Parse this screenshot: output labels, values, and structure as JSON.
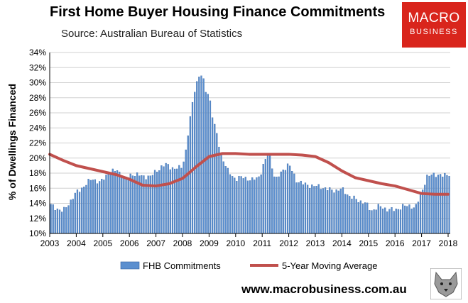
{
  "header": {
    "title": "First Home Buyer Housing Finance Commitments",
    "subtitle": "Source: Australian Bureau of Statistics"
  },
  "logo": {
    "line1": "MACRO",
    "line2": "BUSINESS"
  },
  "footer": {
    "website": "www.macrobusiness.com.au"
  },
  "colors": {
    "bars": "#5b8fcf",
    "bar_edge": "#2f5f9e",
    "average": "#c0504d",
    "logo_bg": "#d9251c"
  },
  "chart_data": {
    "type": "bar",
    "title": "First Home Buyer Housing Finance Commitments",
    "ylabel": "% of Dwellings Financed",
    "xlabel": "",
    "ylim": [
      10,
      34
    ],
    "yticks": [
      "10%",
      "12%",
      "14%",
      "16%",
      "18%",
      "20%",
      "22%",
      "24%",
      "26%",
      "28%",
      "30%",
      "32%",
      "34%"
    ],
    "xticks": [
      "2003",
      "2004",
      "2005",
      "2006",
      "2007",
      "2008",
      "2009",
      "2010",
      "2011",
      "2012",
      "2013",
      "2014",
      "2015",
      "2016",
      "2017",
      "2018"
    ],
    "xlim": [
      2003.0,
      2018.08
    ],
    "grid": true,
    "legend_position": "bottom",
    "series": [
      {
        "name": "FHB Commitments",
        "type": "bar",
        "anchors_x": [
          2003.0,
          2003.5,
          2004.0,
          2004.3,
          2004.6,
          2004.9,
          2005.2,
          2005.55,
          2005.85,
          2006.1,
          2006.5,
          2006.8,
          2007.0,
          2007.4,
          2007.7,
          2007.95,
          2008.1,
          2008.3,
          2008.45,
          2008.6,
          2008.75,
          2008.85,
          2009.0,
          2009.15,
          2009.3,
          2009.45,
          2009.7,
          2010.0,
          2010.3,
          2010.6,
          2010.9,
          2011.1,
          2011.25,
          2011.5,
          2011.8,
          2012.0,
          2012.3,
          2012.6,
          2012.9,
          2013.2,
          2013.5,
          2013.8,
          2014.0,
          2014.3,
          2014.6,
          2014.9,
          2015.1,
          2015.4,
          2015.7,
          2016.0,
          2016.3,
          2016.6,
          2016.75,
          2016.9,
          2017.2,
          2017.5,
          2017.8,
          2018.0
        ],
        "anchors_y": [
          13.8,
          12.9,
          15.4,
          16.3,
          17.3,
          16.7,
          18.0,
          18.4,
          17.2,
          17.9,
          17.6,
          17.5,
          18.3,
          19.2,
          18.5,
          18.8,
          20.3,
          25.5,
          29.0,
          30.8,
          31.0,
          29.0,
          28.5,
          25.0,
          23.0,
          20.5,
          18.3,
          17.2,
          17.5,
          17.0,
          17.6,
          19.5,
          20.8,
          17.0,
          18.5,
          19.2,
          17.0,
          16.5,
          16.3,
          16.2,
          15.8,
          15.7,
          15.9,
          14.9,
          14.4,
          14.0,
          13.0,
          13.6,
          13.2,
          13.1,
          13.6,
          13.7,
          13.3,
          14.5,
          17.5,
          17.9,
          17.6,
          17.9
        ]
      },
      {
        "name": "5-Year Moving Average",
        "type": "line",
        "x": [
          2003.0,
          2003.5,
          2004.0,
          2004.5,
          2005.0,
          2005.5,
          2006.0,
          2006.5,
          2007.0,
          2007.5,
          2008.0,
          2008.5,
          2009.0,
          2009.5,
          2010.0,
          2010.5,
          2011.0,
          2011.5,
          2012.0,
          2012.5,
          2013.0,
          2013.5,
          2014.0,
          2014.5,
          2015.0,
          2015.5,
          2016.0,
          2016.5,
          2017.0,
          2017.5,
          2018.0
        ],
        "y": [
          20.5,
          19.7,
          19.0,
          18.6,
          18.2,
          17.8,
          17.2,
          16.4,
          16.3,
          16.6,
          17.3,
          18.8,
          20.2,
          20.6,
          20.6,
          20.5,
          20.5,
          20.5,
          20.5,
          20.4,
          20.2,
          19.4,
          18.3,
          17.4,
          17.0,
          16.6,
          16.3,
          15.8,
          15.3,
          15.2,
          15.2
        ]
      }
    ]
  }
}
